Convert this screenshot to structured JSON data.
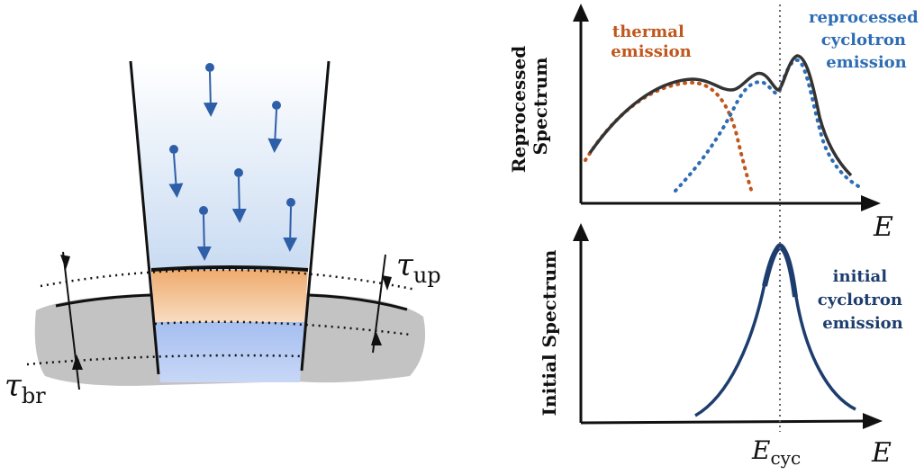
{
  "diagram": {
    "left": {
      "tau_up_label": "τ",
      "tau_up_sub": "up",
      "tau_br_label": "τ",
      "tau_br_sub": "br"
    },
    "top_plot": {
      "ylabel_line1": "Reprocessed",
      "ylabel_line2": "Spectrum",
      "xlabel": "E",
      "thermal_line1": "thermal",
      "thermal_line2": "emission",
      "reproc_line1": "reprocessed",
      "reproc_line2": "cyclotron",
      "reproc_line3": "emission"
    },
    "bottom_plot": {
      "ylabel": "Initial Spectrum",
      "xlabel": "E",
      "initial_line1": "initial",
      "initial_line2": "cyclotron",
      "initial_line3": "emission",
      "ecyc_main": "E",
      "ecyc_sub": "cyc"
    },
    "colors": {
      "thermal": "#c0561c",
      "cyclotron": "#2e6db4",
      "initial": "#1d3d6e",
      "axis": "#111111"
    }
  }
}
